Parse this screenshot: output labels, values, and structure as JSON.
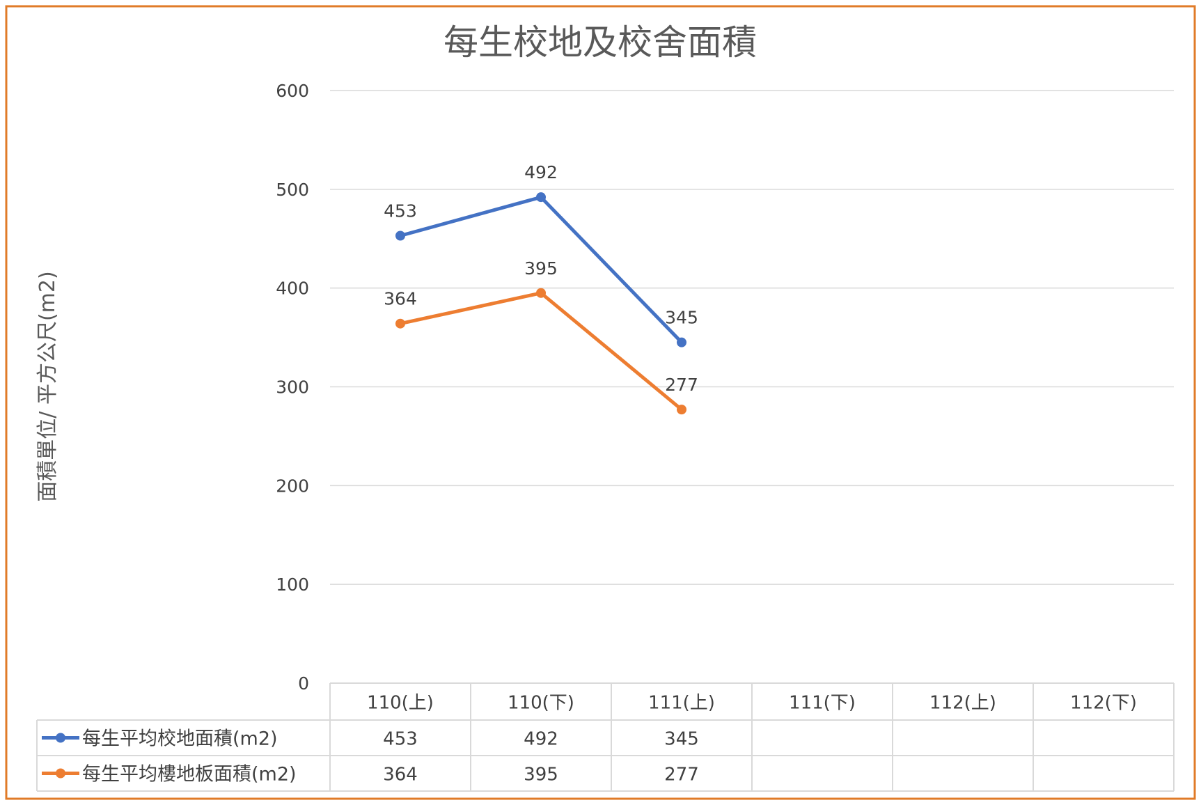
{
  "chart_data": {
    "type": "line",
    "title": "每生校地及校舍面積",
    "ylabel": "面積單位/ 平方公尺(m2)",
    "xlabel": "",
    "ylim": [
      0,
      600
    ],
    "yticks": [
      0,
      100,
      200,
      300,
      400,
      500,
      600
    ],
    "grid": true,
    "legend": "data-table",
    "categories": [
      "110(上)",
      "110(下)",
      "111(上)",
      "111(下)",
      "112(上)",
      "112(下)"
    ],
    "series": [
      {
        "name": "每生平均校地面積(m2)",
        "color": "#4472C4",
        "values": [
          453,
          492,
          345,
          null,
          null,
          null
        ]
      },
      {
        "name": "每生平均樓地板面積(m2)",
        "color": "#ED7D31",
        "values": [
          364,
          395,
          277,
          null,
          null,
          null
        ]
      }
    ]
  },
  "colors": {
    "frame": "#E07B28",
    "grid": "#D9D9D9",
    "text": "#404040"
  }
}
